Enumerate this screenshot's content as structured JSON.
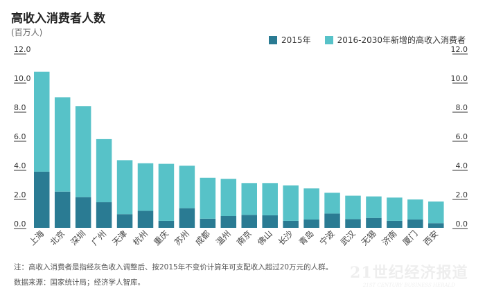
{
  "chart_data": {
    "type": "bar",
    "stacked": true,
    "title": "高收入消费者人数",
    "ylabel": "(百万人)",
    "ylim": [
      0,
      12
    ],
    "yticks": [
      "0.0",
      "2.0",
      "4.0",
      "6.0",
      "8.0",
      "10.0",
      "12.0"
    ],
    "categories": [
      "上海",
      "北京",
      "深圳",
      "广州",
      "天津",
      "杭州",
      "重庆",
      "苏州",
      "成都",
      "温州",
      "南京",
      "佛山",
      "长沙",
      "青岛",
      "宁波",
      "武汉",
      "无锡",
      "济南",
      "厦门",
      "西安"
    ],
    "series": [
      {
        "name": "2015年",
        "color": "#2a7b93",
        "values": [
          3.86,
          2.49,
          2.11,
          1.76,
          0.94,
          1.17,
          0.48,
          1.35,
          0.63,
          0.81,
          0.89,
          0.86,
          0.48,
          0.57,
          0.98,
          0.6,
          0.68,
          0.48,
          0.57,
          0.32
        ]
      },
      {
        "name": "2016-2030年新增的高收入消费者",
        "color": "#57c2c8",
        "values": [
          6.87,
          6.49,
          6.26,
          4.34,
          3.71,
          3.27,
          3.92,
          2.92,
          2.81,
          2.56,
          2.19,
          2.22,
          2.44,
          2.14,
          1.43,
          1.61,
          1.48,
          1.6,
          1.38,
          1.49
        ]
      }
    ],
    "legend": "top-right",
    "grid": false
  },
  "notes": {
    "note": "注：高收入消费者是指经灰色收入调整后、按2015年不变价计算年可支配收入超过20万元的人群。",
    "source": "数据来源：国家统计局；经济学人智库。"
  },
  "watermark": {
    "cn": "21世纪经济报道",
    "en": "21ST CENTURY BUSINESS HERALD"
  }
}
